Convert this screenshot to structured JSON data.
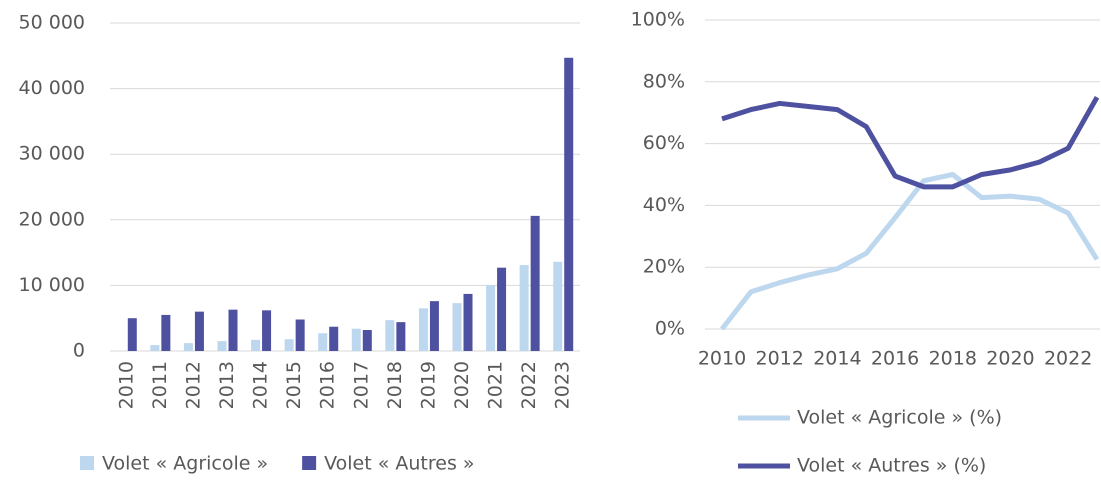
{
  "chart_data": [
    {
      "type": "bar",
      "categories": [
        "2010",
        "2011",
        "2012",
        "2013",
        "2014",
        "2015",
        "2016",
        "2017",
        "2018",
        "2019",
        "2020",
        "2021",
        "2022",
        "2023"
      ],
      "series": [
        {
          "name": "Volet « Agricole »",
          "color": "#bdd7ee",
          "values": [
            0,
            900,
            1200,
            1500,
            1700,
            1800,
            2700,
            3400,
            4700,
            6500,
            7300,
            10000,
            13100,
            13600
          ]
        },
        {
          "name": "Volet « Autres »",
          "color": "#4e51a0",
          "values": [
            5000,
            5500,
            6000,
            6300,
            6200,
            4800,
            3700,
            3200,
            4400,
            7600,
            8700,
            12700,
            20600,
            44700
          ]
        }
      ],
      "ylim": [
        0,
        50000
      ],
      "yticks": [
        0,
        {
          "value": 10000,
          "label": "10 000"
        },
        {
          "value": 20000,
          "label": "20 000"
        },
        {
          "value": 30000,
          "label": "30 000"
        },
        {
          "value": 40000,
          "label": "40 000"
        },
        {
          "value": 50000,
          "label": "50 000"
        }
      ],
      "grid": true,
      "legend": "bottom"
    },
    {
      "type": "line",
      "x": [
        2010,
        2011,
        2012,
        2013,
        2014,
        2015,
        2016,
        2017,
        2018,
        2019,
        2020,
        2021,
        2022,
        2023
      ],
      "series": [
        {
          "name": "Volet « Agricole » (%)",
          "color": "#bdd7ee",
          "values": [
            0,
            12,
            15,
            17.5,
            19.5,
            24.5,
            36,
            48,
            50,
            42.5,
            43,
            42,
            37.5,
            22.5
          ]
        },
        {
          "name": "Volet « Autres » (%)",
          "color": "#4e51a0",
          "values": [
            68,
            71,
            73,
            72,
            71,
            65.5,
            49.5,
            46,
            46,
            50,
            51.5,
            54,
            58.5,
            75
          ]
        }
      ],
      "xlim": [
        2010,
        2023
      ],
      "xticks": [
        2010,
        2012,
        2014,
        2016,
        2018,
        2020,
        2022
      ],
      "ylim": [
        0,
        100
      ],
      "yticks": [
        {
          "value": 0,
          "label": "0%"
        },
        {
          "value": 20,
          "label": "20%"
        },
        {
          "value": 40,
          "label": "40%"
        },
        {
          "value": 60,
          "label": "60%"
        },
        {
          "value": 80,
          "label": "80%"
        },
        {
          "value": 100,
          "label": "100%"
        }
      ],
      "grid": true,
      "legend": "bottom"
    }
  ]
}
